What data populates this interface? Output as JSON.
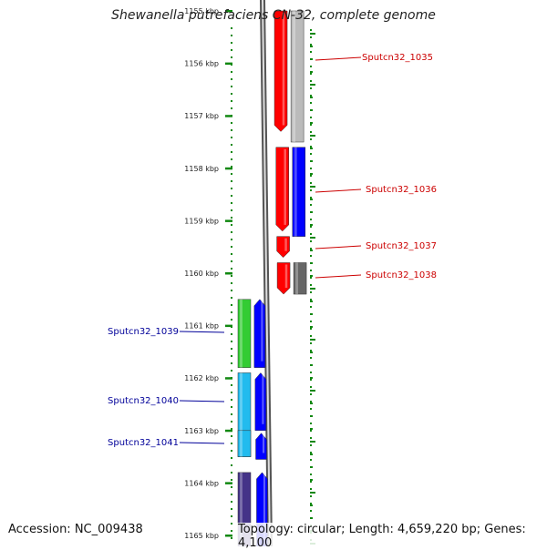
{
  "title": "Shewanella putrefaciens CN-32, complete genome",
  "accession": "Accession: NC_009438",
  "topology": "Topology: circular; Length: 4,659,220 bp; Genes: 4,100",
  "ruler": {
    "ticks": [
      "1155 kbp",
      "1156 kbp",
      "1157 kbp",
      "1158 kbp",
      "1159 kbp",
      "1160 kbp",
      "1161 kbp",
      "1162 kbp",
      "1163 kbp",
      "1164 kbp",
      "1165 kbp"
    ]
  },
  "colors": {
    "red": "#ff0000",
    "blue": "#0000ff",
    "gray": "#bbbbbb",
    "darkgray": "#666666",
    "green": "#33cc33",
    "cyan": "#22bbee",
    "purple": "#443388",
    "tick_green": "#118811",
    "forward_label": "#cc0000",
    "reverse_label": "#000099",
    "backbone": "#888888"
  },
  "forward_genes": [
    {
      "label": "Sputcn32_1035",
      "start_kbp": 1155.0,
      "end_kbp": 1157.3,
      "color": "red"
    },
    {
      "label": "Sputcn32_1036",
      "start_kbp": 1157.6,
      "end_kbp": 1159.2,
      "color": "red"
    },
    {
      "label": "Sputcn32_1037",
      "start_kbp": 1159.3,
      "end_kbp": 1159.7,
      "color": "red"
    },
    {
      "label": "Sputcn32_1038",
      "start_kbp": 1159.8,
      "end_kbp": 1160.4,
      "color": "red"
    }
  ],
  "forward_blocks": [
    {
      "start_kbp": 1155.0,
      "end_kbp": 1157.5,
      "color": "gray"
    },
    {
      "start_kbp": 1157.6,
      "end_kbp": 1159.3,
      "color": "blue"
    },
    {
      "start_kbp": 1159.8,
      "end_kbp": 1160.4,
      "color": "darkgray"
    }
  ],
  "reverse_genes": [
    {
      "label": "Sputcn32_1039",
      "start_kbp": 1160.5,
      "end_kbp": 1161.8,
      "color": "green"
    },
    {
      "label": "Sputcn32_1040",
      "start_kbp": 1161.9,
      "end_kbp": 1163.5,
      "color": "cyan"
    },
    {
      "label": "Sputcn32_1041",
      "start_kbp": 1163.0,
      "end_kbp": 1163.5,
      "color": "cyan"
    },
    {
      "label": "",
      "start_kbp": 1163.8,
      "end_kbp": 1165.3,
      "color": "purple"
    }
  ],
  "reverse_blocks": [
    {
      "start_kbp": 1160.5,
      "end_kbp": 1161.8,
      "color": "blue"
    },
    {
      "start_kbp": 1161.9,
      "end_kbp": 1163.0,
      "color": "blue"
    },
    {
      "start_kbp": 1163.05,
      "end_kbp": 1163.55,
      "color": "blue"
    },
    {
      "start_kbp": 1163.8,
      "end_kbp": 1165.3,
      "color": "blue"
    }
  ]
}
